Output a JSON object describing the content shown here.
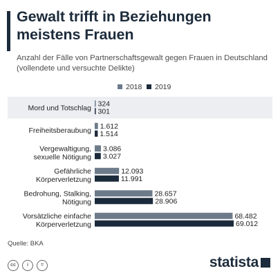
{
  "header": {
    "title": "Gewalt trifft in Beziehungen meistens Frauen",
    "subtitle": "Anzahl der Fälle von Partnerschaftsgewalt gegen Frauen in Deutschland (vollendete und versuchte Delikte)"
  },
  "footer": {
    "source": "Quelle: BKA",
    "brand": "statista"
  },
  "colors": {
    "series_2018": "#6c7a89",
    "series_2019": "#1c2b3b",
    "highlight_row": "#eceef1",
    "accent": "#1c2b3b"
  },
  "chart_data": {
    "type": "bar",
    "orientation": "horizontal",
    "categories": [
      [
        "Mord und Totschlag"
      ],
      [
        "Freiheitsberaubung"
      ],
      [
        "Vergewaltigung,",
        "sexuelle Nötigung"
      ],
      [
        "Gefährliche",
        "Körperverletzung"
      ],
      [
        "Bedrohung, Stalking,",
        "Nötigung"
      ],
      [
        "Vorsätzliche einfache",
        "Körperverletzung"
      ]
    ],
    "series": [
      {
        "name": "2018",
        "values": [
          324,
          1612,
          3086,
          12093,
          28657,
          68482
        ],
        "labels": [
          "324",
          "1.612",
          "3.086",
          "12.093",
          "28.657",
          "68.482"
        ]
      },
      {
        "name": "2019",
        "values": [
          301,
          1514,
          3027,
          11991,
          28906,
          69012
        ],
        "labels": [
          "301",
          "1.514",
          "3.027",
          "11.991",
          "28.906",
          "69.012"
        ]
      }
    ],
    "legend_position": "top-right",
    "grid": false,
    "xlim": [
      0,
      69012
    ]
  }
}
